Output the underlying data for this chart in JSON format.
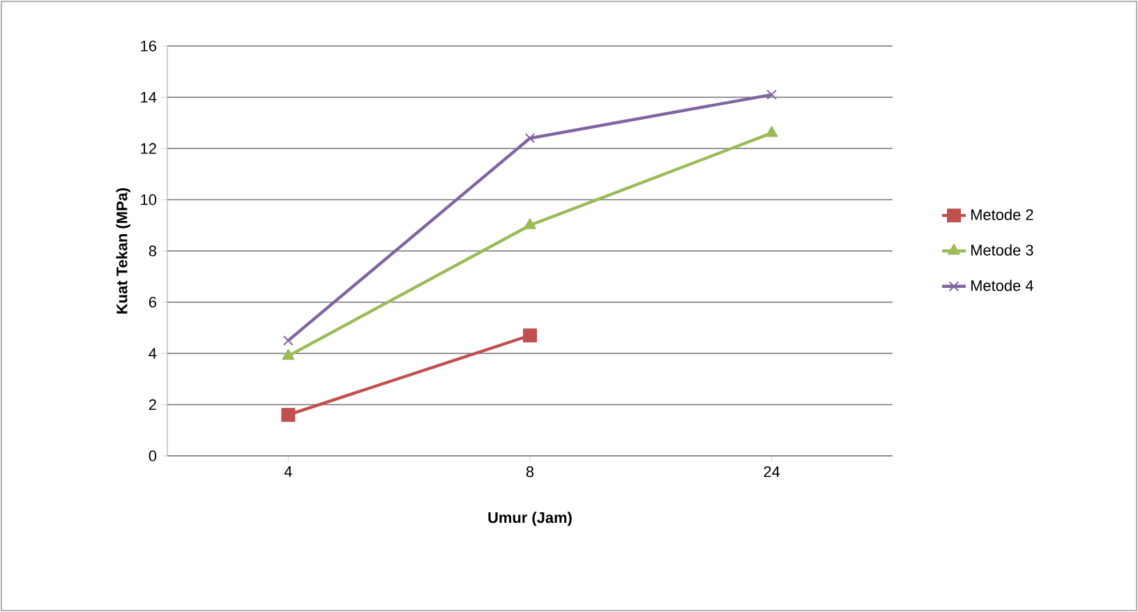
{
  "chart_data": {
    "type": "line",
    "xlabel": "Umur (Jam)",
    "ylabel": "Kuat Tekan (MPa)",
    "categories": [
      "4",
      "8",
      "24"
    ],
    "series": [
      {
        "name": "Metode 2",
        "color": "#c0504d",
        "marker": "square",
        "values": [
          1.6,
          4.7,
          null
        ]
      },
      {
        "name": "Metode 3",
        "color": "#9bbb59",
        "marker": "triangle",
        "values": [
          3.9,
          9.0,
          12.6
        ]
      },
      {
        "name": "Metode 4",
        "color": "#8064a2",
        "marker": "cross",
        "values": [
          4.5,
          12.4,
          14.1
        ]
      }
    ],
    "ylim": [
      0,
      16
    ],
    "yticks": [
      0,
      2,
      4,
      6,
      8,
      10,
      12,
      14,
      16
    ],
    "grid": "y",
    "legend": "right"
  }
}
